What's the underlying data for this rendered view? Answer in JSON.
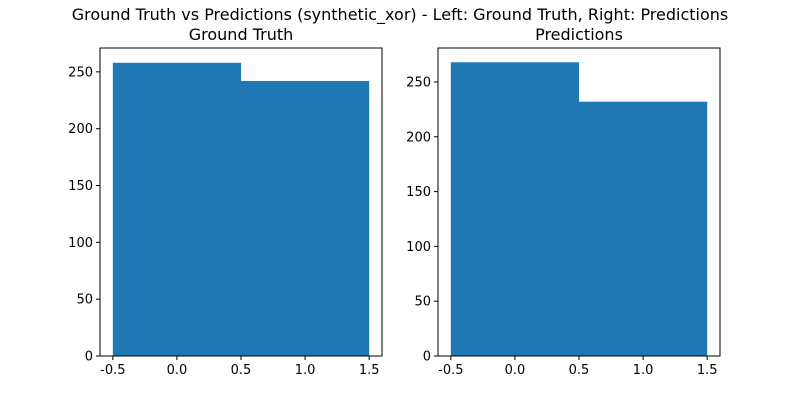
{
  "figure": {
    "title": "Ground Truth vs Predictions (synthetic_xor) - Left: Ground Truth, Right: Predictions"
  },
  "colors": {
    "bar": "#1f77b4",
    "axis": "#000000",
    "background": "#ffffff"
  },
  "chart_data": [
    {
      "type": "bar",
      "title": "Ground Truth",
      "xlabel": "",
      "ylabel": "",
      "bins": [
        {
          "x0": -0.5,
          "x1": 0.5,
          "value": 258
        },
        {
          "x0": 0.5,
          "x1": 1.5,
          "value": 242
        }
      ],
      "xlim": [
        -0.6,
        1.6
      ],
      "ylim": [
        0,
        271
      ],
      "xticks": [
        -0.5,
        0.0,
        0.5,
        1.0,
        1.5
      ],
      "xtick_labels": [
        "-0.5",
        "0.0",
        "0.5",
        "1.0",
        "1.5"
      ],
      "yticks": [
        0,
        50,
        100,
        150,
        200,
        250
      ],
      "ytick_labels": [
        "0",
        "50",
        "100",
        "150",
        "200",
        "250"
      ],
      "grid": false
    },
    {
      "type": "bar",
      "title": "Predictions",
      "xlabel": "",
      "ylabel": "",
      "bins": [
        {
          "x0": -0.5,
          "x1": 0.5,
          "value": 268
        },
        {
          "x0": 0.5,
          "x1": 1.5,
          "value": 232
        }
      ],
      "xlim": [
        -0.6,
        1.6
      ],
      "ylim": [
        0,
        281
      ],
      "xticks": [
        -0.5,
        0.0,
        0.5,
        1.0,
        1.5
      ],
      "xtick_labels": [
        "-0.5",
        "0.0",
        "0.5",
        "1.0",
        "1.5"
      ],
      "yticks": [
        0,
        50,
        100,
        150,
        200,
        250
      ],
      "ytick_labels": [
        "0",
        "50",
        "100",
        "150",
        "200",
        "250"
      ],
      "grid": false
    }
  ]
}
